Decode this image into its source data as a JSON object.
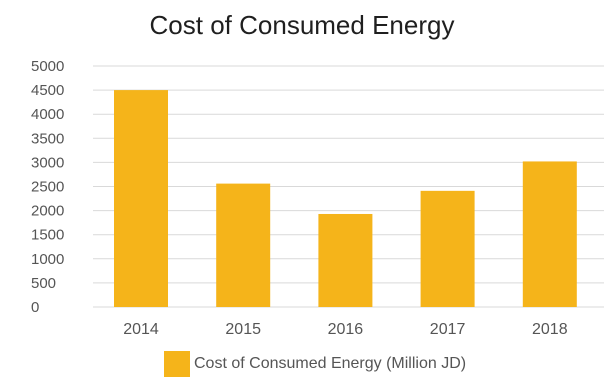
{
  "chart_data": {
    "type": "bar",
    "title": "Cost of Consumed Energy",
    "xlabel": "",
    "ylabel": "",
    "categories": [
      "2014",
      "2015",
      "2016",
      "2017",
      "2018"
    ],
    "series": [
      {
        "name": "Cost of Consumed Energy (Million JD)",
        "values": [
          4500,
          2560,
          1930,
          2410,
          3020
        ]
      }
    ],
    "ylim": [
      0,
      5000
    ],
    "yticks": [
      "0",
      "500",
      "1000",
      "1500",
      "2000",
      "2500",
      "3000",
      "3500",
      "4000",
      "4500",
      "5000"
    ],
    "grid": true,
    "legend_position": "bottom",
    "colors": {
      "bar": "#F5B41A",
      "grid": "#d9d9d9"
    }
  }
}
